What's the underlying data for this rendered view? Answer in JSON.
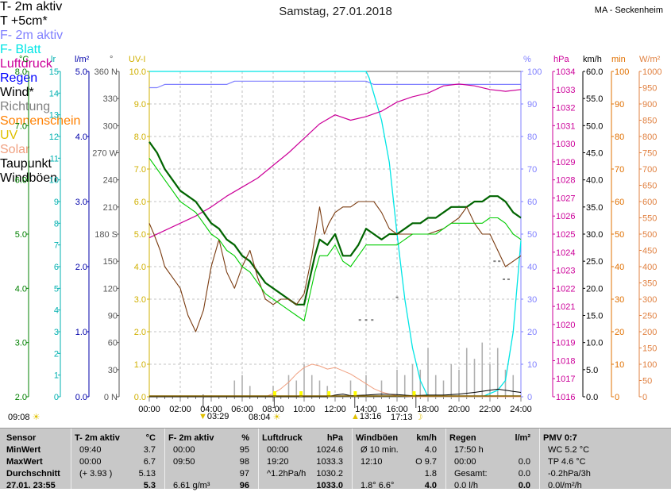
{
  "title": "Samstag, 27.01.2018",
  "station": "MA - Seckenheim",
  "legend": [
    {
      "label": "T- 2m aktiv",
      "color": "#006400",
      "text_color": "#000000"
    },
    {
      "label": "T +5cm*",
      "color": "#7a3b10",
      "text_color": "#000000"
    },
    {
      "label": "F- 2m aktiv",
      "color": "#8080ff",
      "text_color": "#8080ff"
    },
    {
      "label": "F- Blatt",
      "color": "#00e5e5",
      "text_color": "#00e5e5"
    },
    {
      "label": "Luftdruck",
      "color": "#cc0099",
      "text_color": "#cc0099"
    },
    {
      "label": "Regen",
      "color": "#0000ff",
      "text_color": "#0000ff"
    },
    {
      "label": "Wind*",
      "color": "#000000",
      "text_color": "#000000"
    },
    {
      "label": "Richtung",
      "color": "#808080",
      "text_color": "#808080"
    },
    {
      "label": "Sonnenschein",
      "color": "#ff8000",
      "text_color": "#ff8000"
    },
    {
      "label": "UV",
      "color": "#ffff00",
      "text_color": "#e0c000"
    },
    {
      "label": "Solar",
      "color": "#f0a080",
      "text_color": "#f0a080"
    },
    {
      "label": "Taupunkt",
      "color": "#00cc00",
      "text_color": "#000000"
    },
    {
      "label": "Windböen",
      "color": "#c0c0c0",
      "text_color": "#000000"
    }
  ],
  "units": {
    "temp": "°C",
    "lr": "lr",
    "lm2": "l/m²",
    "deg": "°",
    "uv": "UV-I",
    "pct": "%",
    "hpa": "hPa",
    "kmh": "km/h",
    "min": "min",
    "wm2": "W/m²"
  },
  "below_labels": {
    "left_time": "09:08",
    "events": [
      "03:29",
      "08:04",
      "13:16",
      "17:13"
    ]
  },
  "chart_data": {
    "type": "line",
    "x_ticks": [
      "00:00",
      "02:00",
      "04:00",
      "06:00",
      "08:00",
      "10:00",
      "12:00",
      "14:00",
      "16:00",
      "18:00",
      "20:00",
      "22:00",
      "24:00"
    ],
    "axes": {
      "temp": {
        "range": [
          2.0,
          8.0
        ],
        "ticks": [
          "2.0",
          "3.0",
          "4.0",
          "5.0",
          "6.0",
          "7.0",
          "8.0"
        ],
        "color": "#008000"
      },
      "lr": {
        "range": [
          0,
          15
        ],
        "ticks": [
          "0",
          "1",
          "2",
          "3",
          "4",
          "5",
          "6",
          "7",
          "8",
          "9",
          "10",
          "11",
          "12",
          "13",
          "14",
          "15"
        ],
        "color": "#00b0b0"
      },
      "lm2": {
        "range": [
          0,
          5
        ],
        "ticks": [
          "0.0",
          "1.0",
          "2.0",
          "3.0",
          "4.0",
          "5.0"
        ],
        "color": "#0000aa"
      },
      "deg": {
        "range": [
          0,
          360
        ],
        "ticks": [
          "0 N",
          "30",
          "60",
          "90",
          "120",
          "150",
          "180 S",
          "210",
          "240",
          "270 W",
          "300",
          "330",
          "360 N"
        ],
        "color": "#555555"
      },
      "uv": {
        "range": [
          0,
          10
        ],
        "ticks": [
          "0.0",
          "1.0",
          "2.0",
          "3.0",
          "4.0",
          "5.0",
          "6.0",
          "7.0",
          "8.0",
          "9.0",
          "10.0"
        ],
        "color": "#d0b000"
      },
      "pct": {
        "range": [
          0,
          100
        ],
        "ticks": [
          "0",
          "10",
          "20",
          "30",
          "40",
          "50",
          "60",
          "70",
          "80",
          "90",
          "100"
        ],
        "color": "#8080ff"
      },
      "hpa": {
        "range": [
          1016,
          1034
        ],
        "ticks": [
          "1016",
          "1017",
          "1018",
          "1019",
          "1020",
          "1021",
          "1022",
          "1023",
          "1024",
          "1025",
          "1026",
          "1027",
          "1028",
          "1029",
          "1030",
          "1031",
          "1032",
          "1033",
          "1034"
        ],
        "color": "#cc0099"
      },
      "kmh": {
        "range": [
          0,
          60
        ],
        "ticks": [
          "0.0",
          "5.0",
          "10.0",
          "15.0",
          "20.0",
          "25.0",
          "30.0",
          "35.0",
          "40.0",
          "45.0",
          "50.0",
          "55.0",
          "60.0"
        ],
        "color": "#000000"
      },
      "min": {
        "range": [
          0,
          100
        ],
        "ticks": [
          "0",
          "10",
          "20",
          "30",
          "40",
          "50",
          "60",
          "70",
          "80",
          "90",
          "100"
        ],
        "color": "#e07000"
      },
      "wm2": {
        "range": [
          0,
          1000
        ],
        "ticks": [
          "0",
          "50",
          "100",
          "150",
          "200",
          "250",
          "300",
          "350",
          "400",
          "450",
          "500",
          "550",
          "600",
          "650",
          "700",
          "750",
          "800",
          "850",
          "900",
          "950",
          "1000"
        ],
        "color": "#e08040"
      }
    },
    "series": [
      {
        "name": "F- 2m aktiv",
        "axis": "pct",
        "color": "#8080ff",
        "width": 1.2,
        "x": [
          0,
          0.5,
          1,
          2,
          3,
          4,
          5,
          5.5,
          6,
          8,
          10,
          12,
          14,
          14.5,
          16,
          18,
          20,
          22,
          24
        ],
        "y": [
          95,
          95,
          96,
          96,
          96,
          96,
          96,
          97,
          97,
          97,
          97,
          97,
          97,
          96,
          96,
          96,
          96,
          96,
          96
        ]
      },
      {
        "name": "F- Blatt",
        "axis": "pct",
        "color": "#00e5e5",
        "width": 1.3,
        "x": [
          0,
          10,
          14,
          14.2,
          15,
          15.5,
          16,
          16.5,
          17,
          17.5,
          18,
          19,
          20,
          21,
          21.5,
          22,
          22.5,
          23,
          23.5,
          24
        ],
        "y": [
          100,
          100,
          100,
          98,
          85,
          72,
          50,
          30,
          15,
          5,
          0,
          0,
          0,
          0,
          0,
          1,
          2,
          5,
          20,
          48
        ]
      },
      {
        "name": "Luftdruck",
        "axis": "hpa",
        "color": "#cc0099",
        "width": 1.2,
        "x": [
          0,
          1,
          2,
          3,
          4,
          5,
          6,
          7,
          8,
          9,
          10,
          11,
          12,
          13,
          14,
          15,
          16,
          17,
          18,
          19,
          20,
          21,
          22,
          23,
          24
        ],
        "y": [
          1024.8,
          1025.2,
          1025.6,
          1026.0,
          1026.5,
          1027.1,
          1027.6,
          1028.1,
          1028.8,
          1029.5,
          1030.3,
          1031.1,
          1031.6,
          1031.3,
          1031.5,
          1031.8,
          1032.3,
          1032.6,
          1032.8,
          1033.2,
          1033.3,
          1033.2,
          1033.0,
          1032.9,
          1033.0
        ]
      },
      {
        "name": "T- 2m aktiv",
        "axis": "temp",
        "color": "#006400",
        "width": 2.2,
        "x": [
          0,
          0.5,
          1,
          1.5,
          2,
          2.5,
          3,
          3.5,
          4,
          4.5,
          5,
          5.5,
          6,
          6.5,
          7,
          7.5,
          8,
          8.5,
          9,
          9.5,
          10,
          10.3,
          10.7,
          11,
          11.5,
          12,
          12.5,
          13,
          13.5,
          14,
          14.5,
          15,
          15.5,
          16,
          16.5,
          17,
          17.5,
          18,
          18.5,
          19,
          19.5,
          20,
          20.5,
          21,
          21.5,
          22,
          22.5,
          23,
          23.5,
          24
        ],
        "y": [
          6.7,
          6.5,
          6.2,
          6.0,
          5.8,
          5.7,
          5.6,
          5.4,
          5.2,
          5.1,
          4.9,
          4.8,
          4.6,
          4.5,
          4.3,
          4.1,
          4.0,
          3.9,
          3.8,
          3.7,
          3.7,
          4.1,
          4.6,
          4.9,
          4.8,
          5.0,
          4.6,
          4.6,
          4.8,
          5.1,
          5.0,
          4.9,
          5.0,
          5.0,
          5.1,
          5.2,
          5.2,
          5.3,
          5.3,
          5.4,
          5.5,
          5.5,
          5.5,
          5.6,
          5.6,
          5.7,
          5.7,
          5.6,
          5.4,
          5.3
        ]
      },
      {
        "name": "T +5cm*",
        "axis": "temp",
        "color": "#7a3b10",
        "width": 1.1,
        "x": [
          0,
          0.3,
          0.7,
          1,
          1.5,
          2,
          2.5,
          3,
          3.5,
          4,
          4.5,
          5,
          5.5,
          6,
          6.5,
          7,
          7.5,
          8,
          8.5,
          9,
          9.5,
          10,
          10.5,
          11,
          11.3,
          11.6,
          12,
          12.5,
          13,
          13.5,
          14,
          14.5,
          15,
          15.5,
          16,
          16.5,
          17,
          17.5,
          18,
          19,
          20,
          20.5,
          21,
          21.5,
          22,
          22.5,
          23,
          23.5,
          24
        ],
        "y": [
          5.2,
          5.0,
          4.7,
          4.4,
          4.2,
          4.0,
          3.5,
          3.2,
          3.6,
          4.4,
          4.9,
          4.3,
          4.0,
          4.4,
          4.7,
          4.2,
          3.8,
          3.7,
          3.8,
          3.8,
          3.7,
          3.9,
          4.6,
          5.5,
          5.0,
          5.2,
          5.4,
          5.5,
          5.5,
          5.6,
          5.6,
          5.6,
          5.4,
          5.1,
          5.0,
          5.0,
          5.0,
          5.0,
          5.0,
          5.1,
          5.3,
          5.5,
          5.2,
          5.0,
          5.0,
          4.7,
          4.4,
          4.5,
          4.6
        ]
      },
      {
        "name": "Taupunkt",
        "axis": "temp",
        "color": "#00cc00",
        "width": 1.1,
        "x": [
          0,
          0.5,
          1,
          1.5,
          2,
          2.5,
          3,
          3.5,
          4,
          4.5,
          5,
          5.5,
          6,
          6.5,
          7,
          7.5,
          8,
          8.5,
          9,
          9.5,
          10,
          10.3,
          10.7,
          11,
          11.5,
          12,
          12.5,
          13,
          13.5,
          14,
          14.5,
          15,
          15.5,
          16,
          16.5,
          17,
          17.5,
          18,
          18.5,
          19,
          19.5,
          20,
          20.5,
          21,
          21.5,
          22,
          22.5,
          23,
          23.5,
          24
        ],
        "y": [
          6.4,
          6.2,
          6.0,
          5.8,
          5.6,
          5.5,
          5.4,
          5.2,
          5.0,
          4.9,
          4.7,
          4.6,
          4.4,
          4.3,
          4.1,
          3.9,
          3.8,
          3.7,
          3.6,
          3.5,
          3.4,
          3.8,
          4.3,
          4.6,
          4.6,
          4.8,
          4.5,
          4.4,
          4.6,
          4.8,
          4.8,
          4.8,
          4.8,
          4.8,
          4.9,
          5.0,
          5.0,
          5.0,
          5.0,
          5.1,
          5.2,
          5.2,
          5.2,
          5.2,
          5.2,
          5.3,
          5.3,
          5.2,
          5.0,
          4.9
        ]
      },
      {
        "name": "Solar",
        "axis": "wm2",
        "color": "#f0a080",
        "width": 1.0,
        "x": [
          0,
          7.5,
          8,
          8.5,
          9,
          9.5,
          10,
          10.5,
          11,
          11.5,
          12,
          12.5,
          13,
          13.5,
          14,
          14.5,
          15,
          15.5,
          16,
          17,
          24
        ],
        "y": [
          0,
          0,
          10,
          25,
          45,
          70,
          90,
          100,
          95,
          85,
          90,
          80,
          70,
          55,
          40,
          25,
          15,
          8,
          3,
          0,
          0
        ]
      },
      {
        "name": "Wind*",
        "axis": "kmh",
        "color": "#000000",
        "width": 1.0,
        "x": [
          0,
          11.5,
          12,
          12.5,
          13,
          14,
          15,
          16,
          17,
          18,
          19,
          20,
          21,
          22,
          22.5,
          23,
          23.5,
          24
        ],
        "y": [
          0,
          0,
          0.3,
          0.5,
          0.2,
          0.3,
          0.5,
          0.4,
          0.2,
          0.3,
          0.3,
          0.5,
          0.8,
          1.2,
          1.4,
          1.2,
          1.0,
          0.8
        ]
      }
    ],
    "windboeen": {
      "name": "Windböen",
      "axis": "kmh",
      "color": "#b0b0b0",
      "x": [
        5.5,
        6,
        6.5,
        8,
        9,
        9.5,
        10,
        10.5,
        11,
        11.5,
        13,
        14,
        15,
        16,
        16.5,
        17,
        17.5,
        18,
        18.5,
        19,
        19.5,
        20,
        20.5,
        21,
        21.5,
        22,
        22.5,
        23,
        23.5
      ],
      "y": [
        3,
        4,
        2,
        2,
        4,
        3,
        6,
        4,
        3,
        2,
        3,
        4,
        3,
        5,
        4,
        6,
        5,
        9,
        4,
        3,
        6,
        5,
        9,
        7,
        10,
        6,
        9,
        5,
        4
      ]
    },
    "richtung": {
      "name": "Richtung",
      "axis": "deg",
      "color": "#808080",
      "x": [
        13.6,
        14.0,
        14.4,
        16.0,
        22.3,
        22.6,
        22.9,
        23.2
      ],
      "y": [
        85,
        85,
        85,
        110,
        150,
        150,
        130,
        130
      ]
    },
    "event_markers": [
      3.48,
      8.07,
      13.27,
      17.22
    ]
  },
  "table": {
    "row_labels": [
      "Sensor",
      "MinWert",
      "MaxWert",
      "Durchschnitt",
      "27.01. 23:55"
    ],
    "columns": [
      {
        "head": "T- 2m aktiv",
        "unit": "°C",
        "rows": [
          [
            "09:40",
            "3.7"
          ],
          [
            "00:00",
            "6.7"
          ],
          [
            "(+ 3.93 )",
            "5.13"
          ],
          [
            "",
            "5.3"
          ]
        ]
      },
      {
        "head": "F- 2m aktiv",
        "unit": "%",
        "rows": [
          [
            "00:00",
            "95"
          ],
          [
            "09:50",
            "98"
          ],
          [
            "",
            "97"
          ],
          [
            "6.61 g/m³",
            "96"
          ]
        ]
      },
      {
        "head": "Luftdruck",
        "unit": "hPa",
        "rows": [
          [
            "00:00",
            "1024.6"
          ],
          [
            "19:20",
            "1033.3"
          ],
          [
            "^1.2hPa/h",
            "1030.2"
          ],
          [
            "",
            "1033.0"
          ]
        ]
      },
      {
        "head": "Windböen",
        "unit": "km/h",
        "rows": [
          [
            "Ø 10 min.",
            "4.0"
          ],
          [
            "12:10",
            "O 9.7"
          ],
          [
            "",
            "1.8"
          ],
          [
            "1.8° 6.6°",
            "4.0"
          ]
        ]
      },
      {
        "head": "Regen",
        "unit": "l/m²",
        "rows": [
          [
            "17:50 h",
            ""
          ],
          [
            "00:00",
            "0.0"
          ],
          [
            "Gesamt:",
            "0.0"
          ],
          [
            "0.0 l/h",
            "0.0"
          ]
        ]
      },
      {
        "head": "PMV 0:7",
        "unit": "",
        "rows": [
          [
            "WC 5.2 °C",
            ""
          ],
          [
            "TP 4.6 °C",
            ""
          ],
          [
            "-0.2hPa/3h",
            ""
          ],
          [
            "0.0l/m²/h",
            ""
          ]
        ]
      }
    ]
  }
}
